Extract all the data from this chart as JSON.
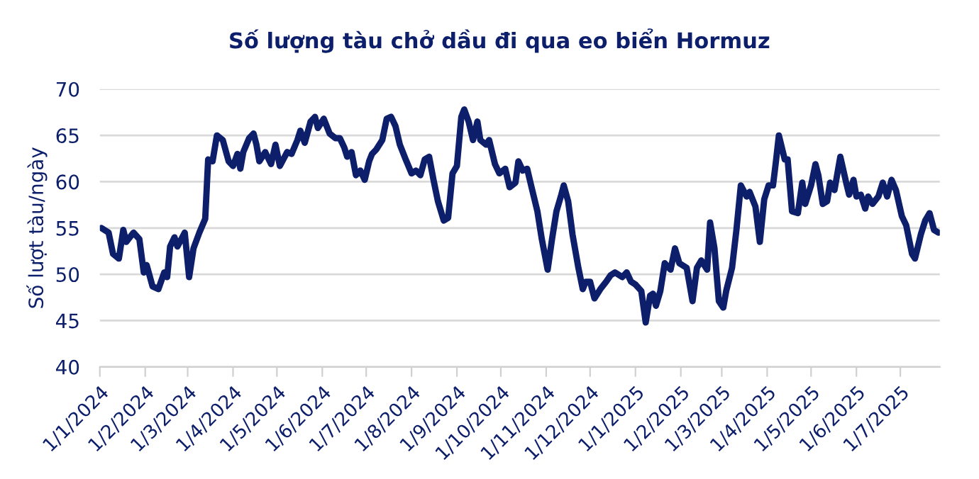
{
  "chart_data": {
    "type": "line",
    "title": "Số lượng tàu chở dầu đi qua eo biển Hormuz",
    "ylabel": "Số lượt tàu/ngày",
    "x": [
      "2024-01-02",
      "2024-01-07",
      "2024-01-10",
      "2024-01-14",
      "2024-01-17",
      "2024-01-19",
      "2024-01-24",
      "2024-01-28",
      "2024-01-31",
      "2024-02-02",
      "2024-02-06",
      "2024-02-10",
      "2024-02-14",
      "2024-02-16",
      "2024-02-18",
      "2024-02-21",
      "2024-02-23",
      "2024-02-28",
      "2024-03-02",
      "2024-03-05",
      "2024-03-09",
      "2024-03-13",
      "2024-03-15",
      "2024-03-18",
      "2024-03-21",
      "2024-03-25",
      "2024-03-29",
      "2024-04-01",
      "2024-04-04",
      "2024-04-06",
      "2024-04-08",
      "2024-04-12",
      "2024-04-15",
      "2024-04-17",
      "2024-04-19",
      "2024-04-23",
      "2024-04-27",
      "2024-04-30",
      "2024-05-03",
      "2024-05-08",
      "2024-05-11",
      "2024-05-15",
      "2024-05-17",
      "2024-05-20",
      "2024-05-24",
      "2024-05-27",
      "2024-05-29",
      "2024-06-02",
      "2024-06-06",
      "2024-06-10",
      "2024-06-13",
      "2024-06-16",
      "2024-06-18",
      "2024-06-21",
      "2024-06-24",
      "2024-06-27",
      "2024-06-30",
      "2024-07-03",
      "2024-07-05",
      "2024-07-08",
      "2024-07-12",
      "2024-07-15",
      "2024-07-18",
      "2024-07-21",
      "2024-07-24",
      "2024-07-28",
      "2024-08-01",
      "2024-08-04",
      "2024-08-07",
      "2024-08-10",
      "2024-08-13",
      "2024-08-16",
      "2024-08-19",
      "2024-08-23",
      "2024-08-26",
      "2024-08-29",
      "2024-09-01",
      "2024-09-04",
      "2024-09-06",
      "2024-09-09",
      "2024-09-12",
      "2024-09-15",
      "2024-09-17",
      "2024-09-21",
      "2024-09-23",
      "2024-09-27",
      "2024-09-30",
      "2024-10-04",
      "2024-10-07",
      "2024-10-11",
      "2024-10-13",
      "2024-10-16",
      "2024-10-19",
      "2024-10-22",
      "2024-10-26",
      "2024-10-29",
      "2024-11-02",
      "2024-11-05",
      "2024-11-08",
      "2024-11-11",
      "2024-11-13",
      "2024-11-16",
      "2024-11-19",
      "2024-11-23",
      "2024-11-26",
      "2024-11-28",
      "2024-12-01",
      "2024-12-04",
      "2024-12-08",
      "2024-12-12",
      "2024-12-15",
      "2024-12-18",
      "2024-12-23",
      "2024-12-26",
      "2024-12-29",
      "2025-01-01",
      "2025-01-05",
      "2025-01-08",
      "2025-01-11",
      "2025-01-13",
      "2025-01-15",
      "2025-01-18",
      "2025-01-21",
      "2025-01-25",
      "2025-01-28",
      "2025-01-31",
      "2025-02-05",
      "2025-02-09",
      "2025-02-12",
      "2025-02-15",
      "2025-02-19",
      "2025-02-21",
      "2025-02-24",
      "2025-02-27",
      "2025-03-02",
      "2025-03-04",
      "2025-03-08",
      "2025-03-11",
      "2025-03-14",
      "2025-03-18",
      "2025-03-20",
      "2025-03-24",
      "2025-03-27",
      "2025-03-30",
      "2025-04-02",
      "2025-04-05",
      "2025-04-07",
      "2025-04-09",
      "2025-04-13",
      "2025-04-15",
      "2025-04-18",
      "2025-04-22",
      "2025-04-25",
      "2025-04-27",
      "2025-05-01",
      "2025-05-04",
      "2025-05-06",
      "2025-05-09",
      "2025-05-12",
      "2025-05-14",
      "2025-05-17",
      "2025-05-21",
      "2025-05-25",
      "2025-05-27",
      "2025-05-30",
      "2025-06-01",
      "2025-06-04",
      "2025-06-07",
      "2025-06-09",
      "2025-06-12",
      "2025-06-16",
      "2025-06-19",
      "2025-06-22",
      "2025-06-25",
      "2025-06-28",
      "2025-07-02",
      "2025-07-05",
      "2025-07-09",
      "2025-07-11",
      "2025-07-15",
      "2025-07-18",
      "2025-07-21",
      "2025-07-24",
      "2025-07-27"
    ],
    "series": [
      {
        "color": "#0d1f6b",
        "values": [
          55.0,
          54.5,
          52.2,
          51.7,
          54.8,
          53.5,
          54.5,
          53.8,
          50.2,
          51.0,
          48.7,
          48.4,
          50.2,
          49.7,
          53.0,
          54.0,
          53.0,
          54.5,
          49.7,
          52.8,
          54.5,
          56.0,
          62.4,
          62.2,
          65.0,
          64.5,
          62.2,
          61.7,
          63.0,
          61.4,
          63.2,
          64.7,
          65.2,
          64.0,
          62.2,
          63.2,
          61.9,
          64.0,
          61.7,
          63.2,
          63.0,
          64.5,
          65.5,
          64.2,
          66.5,
          67.0,
          65.8,
          66.8,
          65.2,
          64.7,
          64.7,
          63.7,
          62.7,
          63.2,
          60.7,
          61.2,
          60.2,
          62.2,
          63.0,
          63.5,
          64.5,
          66.8,
          67.0,
          66.0,
          64.0,
          62.4,
          60.9,
          61.2,
          60.7,
          62.4,
          62.7,
          60.2,
          57.9,
          55.8,
          56.1,
          60.9,
          61.7,
          67.0,
          67.8,
          66.5,
          64.5,
          66.5,
          64.5,
          64.0,
          64.5,
          61.9,
          60.9,
          61.4,
          59.4,
          59.9,
          62.2,
          61.2,
          61.4,
          59.4,
          56.8,
          53.8,
          50.5,
          53.8,
          56.8,
          58.4,
          59.6,
          57.9,
          54.3,
          50.7,
          48.4,
          49.2,
          49.2,
          47.4,
          48.4,
          49.2,
          49.9,
          50.2,
          49.7,
          50.2,
          49.2,
          48.9,
          48.2,
          44.8,
          47.7,
          47.9,
          46.6,
          48.2,
          51.2,
          50.5,
          52.8,
          51.2,
          50.7,
          47.1,
          50.7,
          51.5,
          50.5,
          55.6,
          52.8,
          47.1,
          46.4,
          48.2,
          50.7,
          54.8,
          59.6,
          58.4,
          58.9,
          57.3,
          53.5,
          58.1,
          59.6,
          59.6,
          62.2,
          65.0,
          62.4,
          62.4,
          56.8,
          56.6,
          59.9,
          57.6,
          59.6,
          61.9,
          60.7,
          57.6,
          57.9,
          59.9,
          59.1,
          62.7,
          59.9,
          58.6,
          60.2,
          58.4,
          58.6,
          57.1,
          58.4,
          57.6,
          58.4,
          59.9,
          58.4,
          60.2,
          59.1,
          56.3,
          55.3,
          52.2,
          51.7,
          54.3,
          55.8,
          56.6,
          54.8,
          54.5
        ]
      }
    ],
    "xlim": [
      "2024-01-01",
      "2025-07-28"
    ],
    "xticks": [
      {
        "value": "2024-01-01",
        "label": "1/1/2024"
      },
      {
        "value": "2024-02-01",
        "label": "1/2/2024"
      },
      {
        "value": "2024-03-01",
        "label": "1/3/2024"
      },
      {
        "value": "2024-04-01",
        "label": "1/4/2024"
      },
      {
        "value": "2024-05-01",
        "label": "1/5/2024"
      },
      {
        "value": "2024-06-01",
        "label": "1/6/2024"
      },
      {
        "value": "2024-07-01",
        "label": "1/7/2024"
      },
      {
        "value": "2024-08-01",
        "label": "1/8/2024"
      },
      {
        "value": "2024-09-01",
        "label": "1/9/2024"
      },
      {
        "value": "2024-10-01",
        "label": "1/10/2024"
      },
      {
        "value": "2024-11-01",
        "label": "1/11/2024"
      },
      {
        "value": "2024-12-01",
        "label": "1/12/2024"
      },
      {
        "value": "2025-01-01",
        "label": "1/1/2025"
      },
      {
        "value": "2025-02-01",
        "label": "1/2/2025"
      },
      {
        "value": "2025-03-01",
        "label": "1/3/2025"
      },
      {
        "value": "2025-04-01",
        "label": "1/4/2025"
      },
      {
        "value": "2025-05-01",
        "label": "1/5/2025"
      },
      {
        "value": "2025-06-01",
        "label": "1/6/2025"
      },
      {
        "value": "2025-07-01",
        "label": "1/7/2025"
      }
    ],
    "ylim": [
      40,
      70
    ],
    "yticks": [
      40,
      45,
      50,
      55,
      60,
      65,
      70
    ],
    "grid": "y",
    "marker": "none",
    "line_style": "solid"
  }
}
